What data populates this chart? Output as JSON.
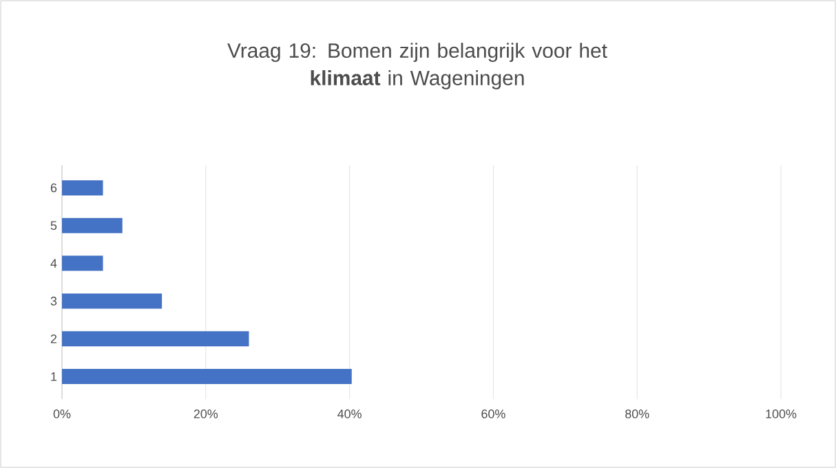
{
  "chart_data": {
    "type": "bar",
    "orientation": "horizontal",
    "title": "Vraag 19: Bomen zijn belangrijk voor het **klimaat** in Wageningen",
    "categories": [
      "6",
      "5",
      "4",
      "3",
      "2",
      "1"
    ],
    "values": [
      5.7,
      8.4,
      5.7,
      13.9,
      26,
      40.3
    ],
    "color": "#4472c4",
    "xlim": [
      0,
      100
    ],
    "xticks": [
      {
        "value": 0,
        "label": "0%"
      },
      {
        "value": 20,
        "label": "20%"
      },
      {
        "value": 40,
        "label": "40%"
      },
      {
        "value": 60,
        "label": "60%"
      },
      {
        "value": 80,
        "label": "80%"
      },
      {
        "value": 100,
        "label": "100%"
      }
    ],
    "grid": "x"
  }
}
